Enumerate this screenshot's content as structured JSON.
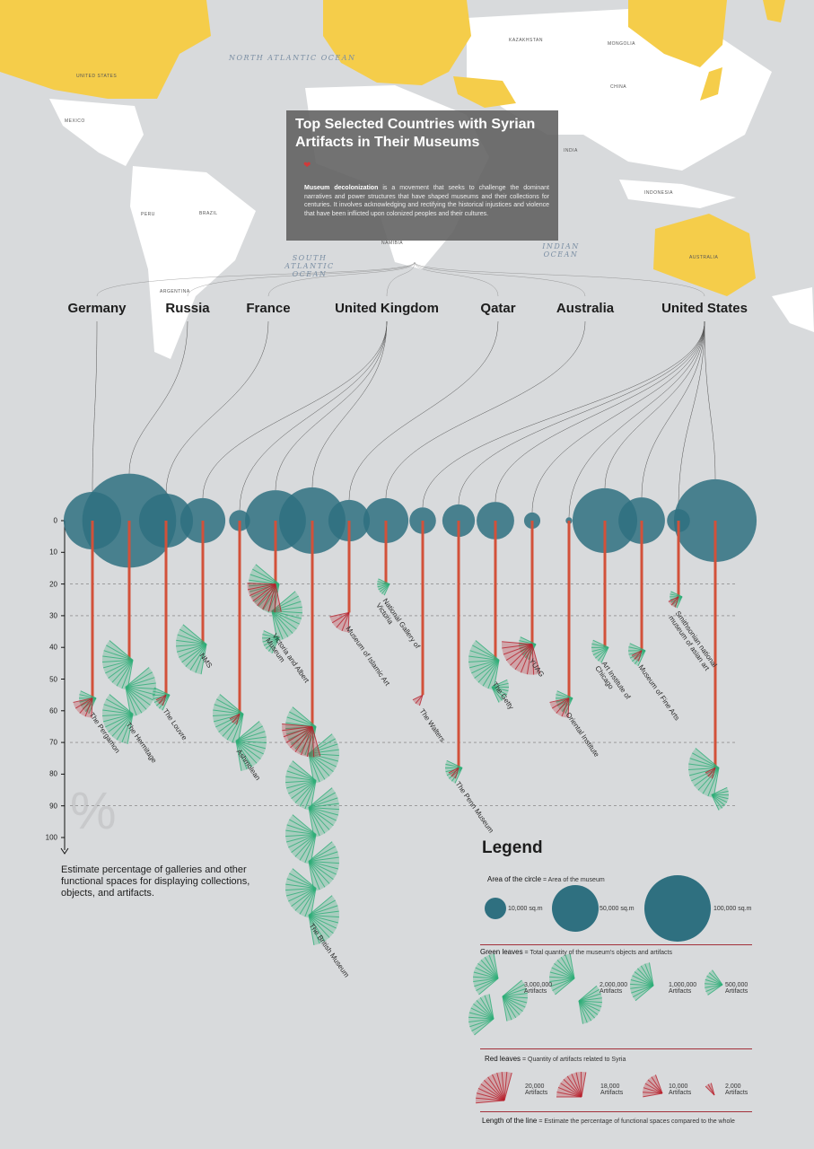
{
  "title": "Top Selected Countries with Syrian Artifacts in Their Museums",
  "intro": {
    "bold": "Museum decolonization",
    "text": " is a movement that seeks to challenge the dominant narratives and power structures that have shaped museums and their collections for centuries. It involves acknowledging and rectifying the historical injustices and violence that have been inflicted upon colonized peoples and their cultures."
  },
  "map": {
    "oceans": [
      "NORTH ATLANTIC OCEAN",
      "SOUTH ATLANTIC OCEAN",
      "INDIAN OCEAN"
    ],
    "labels": [
      "KAZAKHSTAN",
      "MONGOLIA",
      "CHINA",
      "INDIA",
      "BRAZIL",
      "PERU",
      "ARGENTINA",
      "NAMIBIA",
      "INDONESIA",
      "AUSTRALIA",
      "UNITED STATES",
      "MEXICO"
    ],
    "colors": {
      "highlight": "#f5cd4a",
      "land": "#ffffff",
      "sea": "#d8dadc"
    }
  },
  "countries": [
    "Germany",
    "Russia",
    "France",
    "United Kingdom",
    "Qatar",
    "Australia",
    "United States"
  ],
  "axis": {
    "ticks": [
      0,
      10,
      20,
      30,
      40,
      50,
      60,
      70,
      80,
      90,
      100
    ],
    "gridlines": [
      20,
      30,
      70,
      90
    ],
    "symbol": "%"
  },
  "note": "Estimate percentage of galleries and other functional spaces for displaying collections, objects, and artifacts.",
  "colors": {
    "circle": "#2f7080",
    "line": "#d2513a",
    "green": "#2fae78",
    "red": "#b8202c"
  },
  "chart_data": {
    "type": "infographic-bubble-line",
    "encoding": {
      "circle": "area of museum (sq.m)",
      "line": "estimated % of functional display spaces",
      "green": "total objects and artifacts",
      "red": "artifacts related to Syria"
    },
    "ylim": [
      0,
      100
    ],
    "museums": [
      {
        "name": "The Pergamon",
        "country": "Germany",
        "area": 75000,
        "pct": 56,
        "artifacts": 500000,
        "syrian": 10000
      },
      {
        "name": "The Hermitage",
        "country": "Russia",
        "area": 200000,
        "pct": 44,
        "artifacts": 3000000,
        "syrian": 0
      },
      {
        "name": "The Louvre",
        "country": "France",
        "area": 66000,
        "pct": 55,
        "artifacts": 500000,
        "syrian": 2000
      },
      {
        "name": "NMS",
        "country": "United Kingdom",
        "area": 46000,
        "pct": 39,
        "artifacts": 1000000,
        "syrian": 0
      },
      {
        "name": "Ashmolean",
        "country": "United Kingdom",
        "area": 10000,
        "pct": 61,
        "artifacts": 2000000,
        "syrian": 2000
      },
      {
        "name": "Victoria and Albert Museum",
        "country": "United Kingdom",
        "area": 84000,
        "pct": 20,
        "artifacts": 2500000,
        "syrian": 18000
      },
      {
        "name": "The British Museum",
        "country": "United Kingdom",
        "area": 100000,
        "pct": 65,
        "artifacts": 8000000,
        "syrian": 20000
      },
      {
        "name": "Museum of Islamic Art",
        "country": "Qatar",
        "area": 39000,
        "pct": 29,
        "artifacts": 0,
        "syrian": 10000
      },
      {
        "name": "National Gallery of Victoria",
        "country": "Australia",
        "area": 46000,
        "pct": 20,
        "artifacts": 100000,
        "syrian": 0
      },
      {
        "name": "The Walters",
        "country": "United States",
        "area": 16000,
        "pct": 55,
        "artifacts": 0,
        "syrian": 2000
      },
      {
        "name": "The Penn Museum",
        "country": "United States",
        "area": 24000,
        "pct": 78,
        "artifacts": 500000,
        "syrian": 2000
      },
      {
        "name": "The Getty",
        "country": "United States",
        "area": 32000,
        "pct": 44,
        "artifacts": 1500000,
        "syrian": 0
      },
      {
        "name": "YUAG",
        "country": "United States",
        "area": 6000,
        "pct": 39,
        "artifacts": 500000,
        "syrian": 20000
      },
      {
        "name": "Oriental Institute",
        "country": "United States",
        "area": 1000,
        "pct": 56,
        "artifacts": 500000,
        "syrian": 10000
      },
      {
        "name": "Art Institute of Chicago",
        "country": "United States",
        "area": 95000,
        "pct": 40,
        "artifacts": 500000,
        "syrian": 0
      },
      {
        "name": "Museum of Fine Arts",
        "country": "United States",
        "area": 49000,
        "pct": 41,
        "artifacts": 500000,
        "syrian": 2000
      },
      {
        "name": "Smithsonian national museum of asian art",
        "country": "United States",
        "area": 12000,
        "pct": 24,
        "artifacts": 100000,
        "syrian": 2000
      },
      {
        "name": "",
        "country": "United States",
        "area": 155000,
        "pct": 78,
        "artifacts": 1500000,
        "syrian": 2000
      }
    ]
  },
  "legend": {
    "title": "Legend",
    "circle": {
      "label": "Area of the circle",
      "desc": "= Area of the museum",
      "items": [
        "10,000 sq.m",
        "50,000 sq.m",
        "100,000 sq.m"
      ]
    },
    "green": {
      "label": "Green leaves",
      "desc": "= Total quantity of the museum's objects and artifacts",
      "items": [
        "3,000,000",
        "2,000,000",
        "1,000,000",
        "500,000"
      ],
      "unit": "Artifacts"
    },
    "red": {
      "label": "Red leaves",
      "desc": "= Quantity of artifacts related to Syria",
      "items": [
        "20,000",
        "18,000",
        "10,000",
        "2,000"
      ],
      "unit": "Artifacts"
    },
    "line": {
      "label": "Length of the line",
      "desc": "= Estimate the percentage of functional spaces compared to the whole"
    }
  }
}
